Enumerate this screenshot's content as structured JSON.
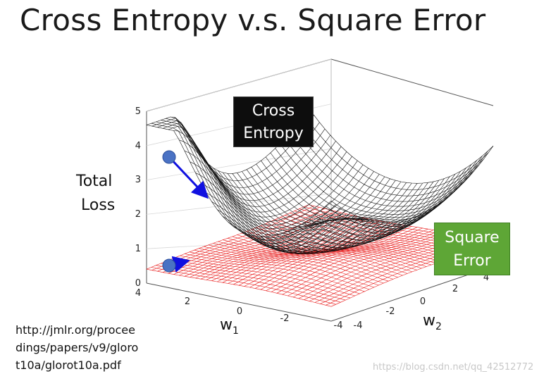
{
  "title": "Cross Entropy v.s. Square Error",
  "z_label": [
    "Total",
    "Loss"
  ],
  "cross_entropy_label": [
    "Cross",
    "Entropy"
  ],
  "square_error_label": [
    "Square",
    "Error"
  ],
  "reference": [
    "http://jmlr.org/procee",
    "dings/papers/v9/gloro",
    "t10a/glorot10a.pdf"
  ],
  "watermark": "https://blog.csdn.net/qq_42512772",
  "axes": {
    "z_ticks": [
      "0",
      "1",
      "2",
      "3",
      "4",
      "5"
    ],
    "w1_ticks": [
      "4",
      "2",
      "0",
      "-2",
      "-4"
    ],
    "w2_ticks": [
      "-4",
      "-2",
      "0",
      "2",
      "4"
    ],
    "w1_label": "w",
    "w1_sub": "1",
    "w2_label": "w",
    "w2_sub": "2"
  },
  "colors": {
    "cross_entropy_mesh": "#111111",
    "square_error_mesh": "#e81818",
    "cross_entropy_box": "#0d0d0d",
    "square_error_box": "#5ea636",
    "point": "#4a72c4",
    "arrow": "#1010e0"
  }
}
